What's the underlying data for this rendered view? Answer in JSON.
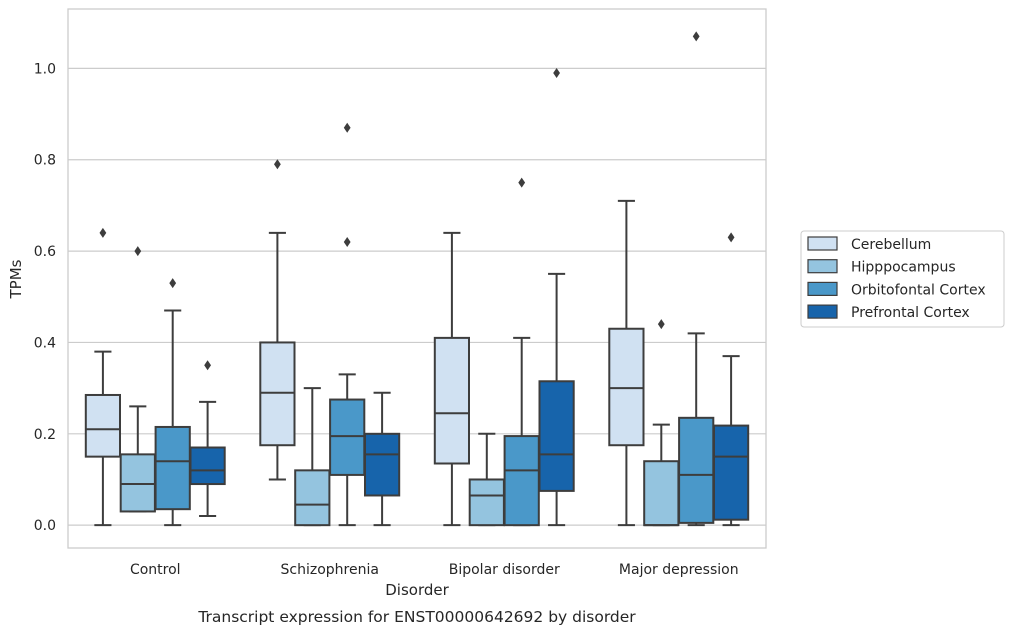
{
  "chart_data": {
    "type": "box",
    "title": "",
    "caption": "Transcript expression for ENST00000642692 by disorder",
    "xlabel": "Disorder",
    "ylabel": "TPMs",
    "ylim": [
      -0.05,
      1.13
    ],
    "yticks": [
      "0.0",
      "0.2",
      "0.4",
      "0.6",
      "0.8",
      "1.0"
    ],
    "grid": "horizontal",
    "legend_position": "right",
    "categories": [
      "Control",
      "Schizophrenia",
      "Bipolar disorder",
      "Major depression"
    ],
    "series": [
      {
        "name": "Cerebellum",
        "color": "#d0e1f2",
        "boxes": [
          {
            "whislo": 0.0,
            "q1": 0.15,
            "med": 0.21,
            "q3": 0.285,
            "whishi": 0.38,
            "fliers": [
              0.64
            ]
          },
          {
            "whislo": 0.1,
            "q1": 0.175,
            "med": 0.29,
            "q3": 0.4,
            "whishi": 0.64,
            "fliers": [
              0.79
            ]
          },
          {
            "whislo": 0.0,
            "q1": 0.135,
            "med": 0.245,
            "q3": 0.41,
            "whishi": 0.64,
            "fliers": []
          },
          {
            "whislo": 0.0,
            "q1": 0.175,
            "med": 0.3,
            "q3": 0.43,
            "whishi": 0.71,
            "fliers": []
          }
        ]
      },
      {
        "name": "Hipppocampus",
        "color": "#94c4df",
        "boxes": [
          {
            "whislo": 0.03,
            "q1": 0.03,
            "med": 0.09,
            "q3": 0.155,
            "whishi": 0.26,
            "fliers": [
              0.6
            ]
          },
          {
            "whislo": 0.0,
            "q1": 0.0,
            "med": 0.045,
            "q3": 0.12,
            "whishi": 0.3,
            "fliers": []
          },
          {
            "whislo": 0.0,
            "q1": 0.0,
            "med": 0.065,
            "q3": 0.1,
            "whishi": 0.2,
            "fliers": []
          },
          {
            "whislo": 0.0,
            "q1": 0.0,
            "med": 0.0,
            "q3": 0.14,
            "whishi": 0.22,
            "fliers": [
              0.44
            ]
          }
        ]
      },
      {
        "name": "Orbitofontal Cortex",
        "color": "#4a98c9",
        "boxes": [
          {
            "whislo": 0.0,
            "q1": 0.035,
            "med": 0.14,
            "q3": 0.215,
            "whishi": 0.47,
            "fliers": [
              0.53
            ]
          },
          {
            "whislo": 0.0,
            "q1": 0.11,
            "med": 0.195,
            "q3": 0.275,
            "whishi": 0.33,
            "fliers": [
              0.62,
              0.87
            ]
          },
          {
            "whislo": 0.0,
            "q1": 0.0,
            "med": 0.12,
            "q3": 0.195,
            "whishi": 0.41,
            "fliers": [
              0.75
            ]
          },
          {
            "whislo": 0.0,
            "q1": 0.005,
            "med": 0.11,
            "q3": 0.235,
            "whishi": 0.42,
            "fliers": [
              1.07
            ]
          }
        ]
      },
      {
        "name": "Prefrontal Cortex",
        "color": "#1764ab",
        "boxes": [
          {
            "whislo": 0.02,
            "q1": 0.09,
            "med": 0.12,
            "q3": 0.17,
            "whishi": 0.27,
            "fliers": [
              0.35
            ]
          },
          {
            "whislo": 0.0,
            "q1": 0.065,
            "med": 0.155,
            "q3": 0.2,
            "whishi": 0.29,
            "fliers": []
          },
          {
            "whislo": 0.0,
            "q1": 0.075,
            "med": 0.155,
            "q3": 0.315,
            "whishi": 0.55,
            "fliers": [
              0.99
            ]
          },
          {
            "whislo": 0.0,
            "q1": 0.012,
            "med": 0.15,
            "q3": 0.218,
            "whishi": 0.37,
            "fliers": [
              0.63
            ]
          }
        ]
      }
    ]
  }
}
